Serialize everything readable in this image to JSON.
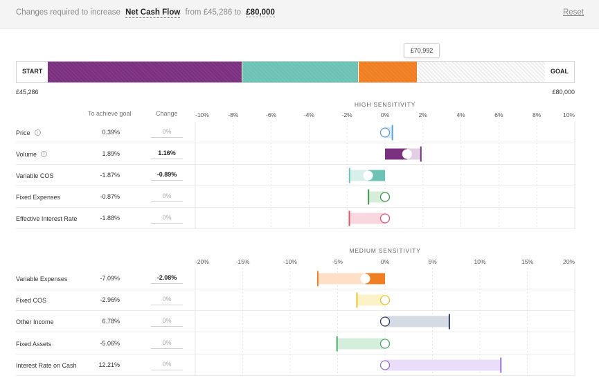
{
  "header": {
    "prefix": "Changes required to increase",
    "metric": "Net Cash Flow",
    "from_text": "from £45,286 to",
    "goal": "£80,000",
    "reset_label": "Reset"
  },
  "progress": {
    "start_label": "START",
    "goal_label": "GOAL",
    "start_value": "£45,286",
    "goal_value": "£80,000",
    "tooltip": "£70,992",
    "segments": [
      {
        "color": "#7b3080",
        "share": 0.392
      },
      {
        "color": "#6cc3b5",
        "share": 0.234
      },
      {
        "color": "#f07f24",
        "share": 0.118
      },
      {
        "color": "#f0f0f0",
        "share": 0.256
      }
    ]
  },
  "columns": {
    "achieve": "To achieve goal",
    "change": "Change"
  },
  "high": {
    "title": "HIGH SENSITIVITY",
    "ticks": [
      "-10%",
      "-8%",
      "-6%",
      "-4%",
      "-2%",
      "0%",
      "2%",
      "4%",
      "6%",
      "8%",
      "10%"
    ],
    "range": [
      -10,
      10
    ],
    "rows": [
      {
        "name": "Price",
        "info": true,
        "achieve": "0.39%",
        "change": "0%",
        "active": false,
        "target": 0.39,
        "current": 0,
        "color": "#5da3d6",
        "fill": "#dbeaf7",
        "solid": false
      },
      {
        "name": "Volume",
        "info": true,
        "achieve": "1.89%",
        "change": "1.16%",
        "active": true,
        "target": 1.89,
        "current": 1.16,
        "color": "#7b3080",
        "fill": "#e2cfe6",
        "solid": true
      },
      {
        "name": "Variable COS",
        "info": false,
        "achieve": "-1.87%",
        "change": "-0.89%",
        "active": true,
        "target": -1.87,
        "current": -0.89,
        "color": "#6cc3b5",
        "fill": "#d8f0ec",
        "solid": true
      },
      {
        "name": "Fixed Expenses",
        "info": false,
        "achieve": "-0.87%",
        "change": "0%",
        "active": false,
        "target": -0.87,
        "current": 0,
        "color": "#3e9a4c",
        "fill": "#d7ecd9",
        "solid": false
      },
      {
        "name": "Effective Interest Rate",
        "info": false,
        "achieve": "-1.88%",
        "change": "0%",
        "active": false,
        "target": -1.88,
        "current": 0,
        "color": "#e0556f",
        "fill": "#f9d7de",
        "solid": false
      }
    ]
  },
  "medium": {
    "title": "MEDIUM SENSITIVITY",
    "ticks": [
      "-20%",
      "-15%",
      "-10%",
      "-5%",
      "0%",
      "5%",
      "10%",
      "15%",
      "20%"
    ],
    "range": [
      -20,
      20
    ],
    "rows": [
      {
        "name": "Variable Expenses",
        "info": false,
        "achieve": "-7.09%",
        "change": "-2.08%",
        "active": true,
        "target": -7.09,
        "current": -2.08,
        "color": "#f07f24",
        "fill": "#fde0c6",
        "solid": true
      },
      {
        "name": "Fixed COS",
        "info": false,
        "achieve": "-2.96%",
        "change": "0%",
        "active": false,
        "target": -2.96,
        "current": 0,
        "color": "#e8c531",
        "fill": "#fcf2c7",
        "solid": false
      },
      {
        "name": "Other Income",
        "info": false,
        "achieve": "6.78%",
        "change": "0%",
        "active": false,
        "target": 6.78,
        "current": 0,
        "color": "#2d3f66",
        "fill": "#d5dae3",
        "solid": false
      },
      {
        "name": "Fixed Assets",
        "info": false,
        "achieve": "-5.06%",
        "change": "0%",
        "active": false,
        "target": -5.06,
        "current": 0,
        "color": "#4caa68",
        "fill": "#d5eddc",
        "solid": false
      },
      {
        "name": "Interest Rate on Cash",
        "info": false,
        "achieve": "12.21%",
        "change": "0%",
        "active": false,
        "target": 12.21,
        "current": 0,
        "color": "#9a6fd6",
        "fill": "#e9def8",
        "solid": false
      }
    ]
  }
}
